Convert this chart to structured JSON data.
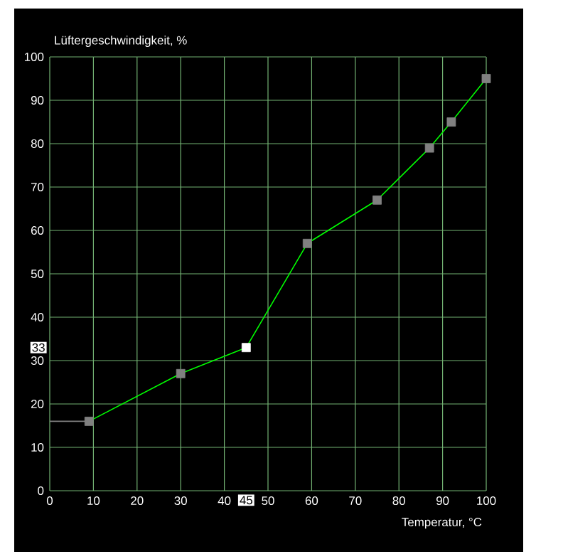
{
  "chart_data": {
    "type": "line",
    "xlabel": "Temperatur, °C",
    "ylabel": "Lüftergeschwindigkeit, %",
    "xlim": [
      0,
      100
    ],
    "ylim": [
      0,
      100
    ],
    "xticks": [
      0,
      10,
      20,
      30,
      40,
      50,
      60,
      70,
      80,
      90,
      100
    ],
    "yticks": [
      0,
      10,
      20,
      30,
      40,
      50,
      60,
      70,
      80,
      90,
      100
    ],
    "grid": true,
    "series": [
      {
        "color": "#808080",
        "x": [
          0,
          9
        ],
        "values": [
          16,
          16
        ]
      },
      {
        "color": "#00ff00",
        "x": [
          9,
          30,
          45,
          59,
          75,
          87,
          92,
          100
        ],
        "values": [
          16,
          27,
          33,
          57,
          67,
          79,
          85,
          95
        ],
        "marker": "square",
        "colors": [
          "#808080",
          "#808080",
          "#ffffff",
          "#808080",
          "#808080",
          "#808080",
          "#808080",
          "#808080"
        ]
      }
    ],
    "annotations": [
      {
        "text": "45",
        "x": 45
      },
      {
        "text": "33",
        "y": 33
      }
    ]
  }
}
